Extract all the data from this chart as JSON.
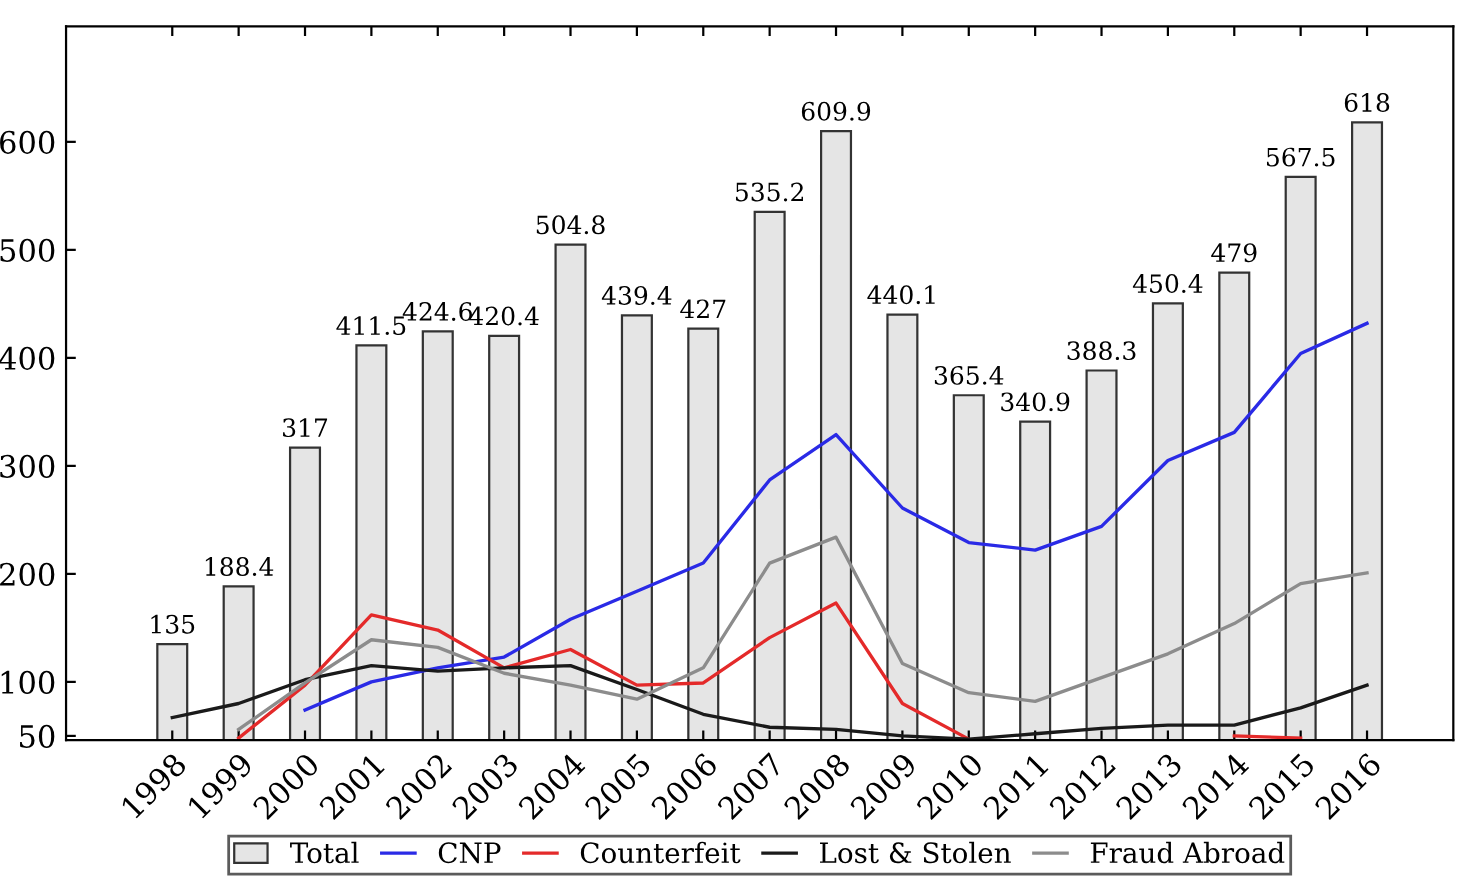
{
  "chart_data": {
    "type": "bar",
    "categories": [
      "1998",
      "1999",
      "2000",
      "2001",
      "2002",
      "2003",
      "2004",
      "2005",
      "2006",
      "2007",
      "2008",
      "2009",
      "2010",
      "2011",
      "2012",
      "2013",
      "2014",
      "2015",
      "2016"
    ],
    "series": [
      {
        "name": "Total",
        "color": "#e5e5e5",
        "values": [
          135,
          188.4,
          317,
          411.5,
          424.6,
          420.4,
          504.8,
          439.4,
          427,
          535.2,
          609.9,
          440.1,
          365.4,
          340.9,
          388.3,
          450.4,
          479,
          567.5,
          618
        ],
        "data_labels": true
      },
      {
        "name": "CNP",
        "type": "line",
        "color": "#2a2ae6",
        "values": [
          null,
          null,
          74,
          100,
          113,
          123,
          158,
          184,
          210,
          287,
          329,
          261,
          229,
          222,
          244,
          305,
          331,
          404,
          432
        ]
      },
      {
        "name": "Counterfeit",
        "type": "line",
        "color": "#e42a2a",
        "values": [
          null,
          48,
          97,
          162,
          148,
          113,
          130,
          97,
          99,
          141,
          173,
          80,
          47,
          null,
          null,
          null,
          50,
          48,
          null
        ]
      },
      {
        "name": "Lost & Stolen",
        "type": "line",
        "color": "#1a1a1a",
        "values": [
          67,
          80,
          102,
          115,
          110,
          113,
          115,
          93,
          70,
          58,
          56,
          50,
          47,
          52,
          57,
          60,
          60,
          76,
          97
        ]
      },
      {
        "name": "Fraud Abroad",
        "type": "line",
        "color": "#8c8c8c",
        "values": [
          null,
          56,
          99,
          139,
          132,
          108,
          97,
          84,
          113,
          210,
          234,
          117,
          90,
          82,
          104,
          126,
          154,
          191,
          201
        ]
      }
    ],
    "ylim": [
      46,
      707
    ],
    "yticks": [
      50,
      100,
      200,
      300,
      400,
      500,
      600
    ],
    "grid": false,
    "legend": "bottom",
    "marker": "none",
    "line_style": "solid"
  }
}
